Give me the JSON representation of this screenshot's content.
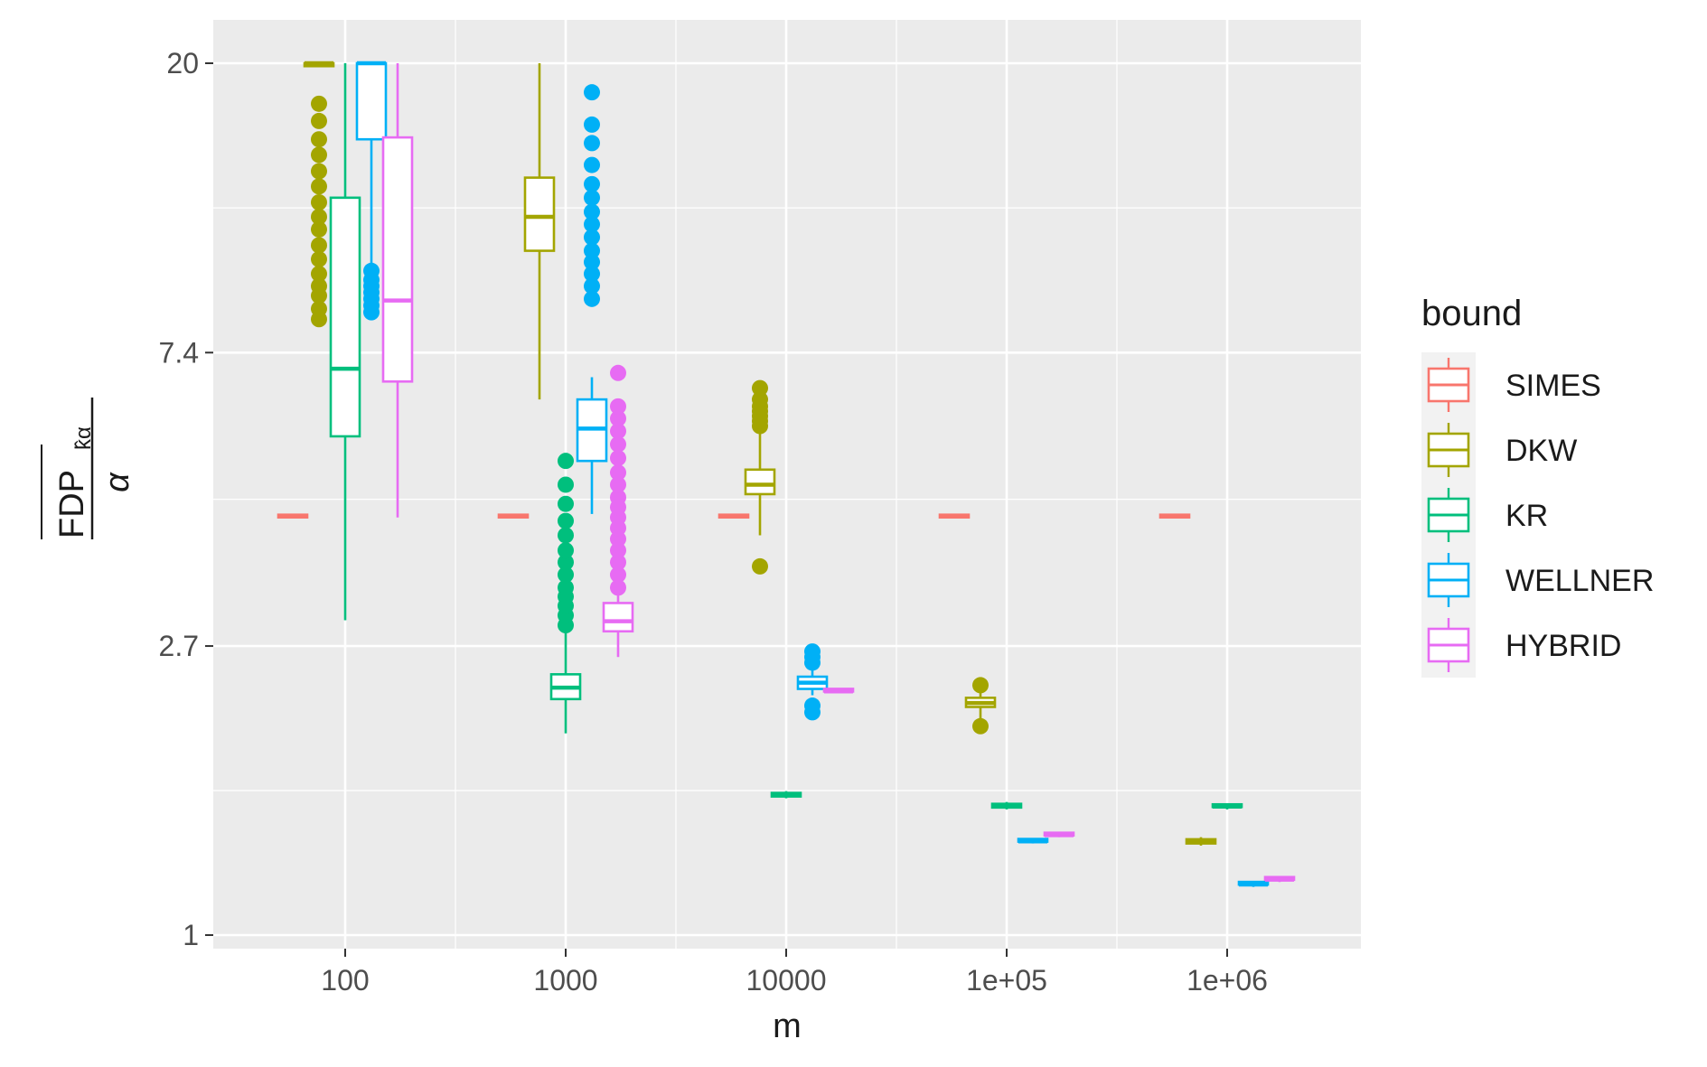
{
  "chart_data": {
    "type": "boxplot",
    "x_axis": {
      "label": "m",
      "scale": "log10",
      "ticks": [
        100,
        1000,
        10000,
        100000,
        1000000
      ],
      "tick_labels": [
        "100",
        "1000",
        "10000",
        "1e+05",
        "1e+06"
      ]
    },
    "y_axis": {
      "label_numerator": "FDP",
      "label_subscript": "k̂α",
      "label_denominator": "α",
      "scale": "log",
      "ticks": [
        1,
        2.7,
        7.4,
        20
      ],
      "tick_labels": [
        "1",
        "2.7",
        "7.4",
        "20"
      ],
      "ylim": [
        1,
        20
      ]
    },
    "grid": true,
    "legend": {
      "title": "bound",
      "position": "right",
      "entries": [
        {
          "name": "SIMES",
          "color": "#F8766D"
        },
        {
          "name": "DKW",
          "color": "#A3A500"
        },
        {
          "name": "KR",
          "color": "#00BF7D"
        },
        {
          "name": "WELLNER",
          "color": "#00B0F6"
        },
        {
          "name": "HYBRID",
          "color": "#E76BF3"
        }
      ]
    },
    "series": [
      {
        "name": "SIMES",
        "color": "#F8766D",
        "boxes": [
          {
            "m": 100,
            "lower": 4.22,
            "q1": 4.22,
            "median": 4.22,
            "q3": 4.22,
            "upper": 4.22,
            "outliers": []
          },
          {
            "m": 1000,
            "lower": 4.22,
            "q1": 4.22,
            "median": 4.22,
            "q3": 4.22,
            "upper": 4.22,
            "outliers": []
          },
          {
            "m": 10000,
            "lower": 4.22,
            "q1": 4.22,
            "median": 4.22,
            "q3": 4.22,
            "upper": 4.22,
            "outliers": []
          },
          {
            "m": 100000,
            "lower": 4.22,
            "q1": 4.22,
            "median": 4.22,
            "q3": 4.22,
            "upper": 4.22,
            "outliers": []
          },
          {
            "m": 1000000,
            "lower": 4.22,
            "q1": 4.22,
            "median": 4.22,
            "q3": 4.22,
            "upper": 4.22,
            "outliers": []
          }
        ]
      },
      {
        "name": "DKW",
        "color": "#A3A500",
        "boxes": [
          {
            "m": 100,
            "lower": 20,
            "q1": 19.8,
            "median": 20,
            "q3": 20,
            "upper": 20,
            "outliers": [
              8.3,
              8.6,
              9.0,
              9.3,
              9.7,
              10.2,
              10.7,
              11.3,
              11.8,
              12.4,
              13.1,
              13.8,
              14.6,
              15.4,
              16.4,
              17.4
            ]
          },
          {
            "m": 1000,
            "lower": 6.3,
            "q1": 10.5,
            "median": 11.8,
            "q3": 13.5,
            "upper": 20,
            "outliers": []
          },
          {
            "m": 10000,
            "lower": 3.95,
            "q1": 4.55,
            "median": 4.7,
            "q3": 4.95,
            "upper": 5.65,
            "outliers": [
              3.55,
              5.75,
              5.85,
              5.95,
              6.05,
              6.15,
              6.3,
              6.55
            ]
          },
          {
            "m": 100000,
            "lower": 2.1,
            "q1": 2.19,
            "median": 2.22,
            "q3": 2.26,
            "upper": 2.32,
            "outliers": [
              2.05,
              2.36
            ]
          },
          {
            "m": 1000000,
            "lower": 1.36,
            "q1": 1.37,
            "median": 1.38,
            "q3": 1.39,
            "upper": 1.4,
            "outliers": []
          }
        ]
      },
      {
        "name": "KR",
        "color": "#00BF7D",
        "boxes": [
          {
            "m": 100,
            "lower": 2.95,
            "q1": 5.55,
            "median": 7.0,
            "q3": 12.6,
            "upper": 20,
            "outliers": []
          },
          {
            "m": 1000,
            "lower": 2.0,
            "q1": 2.25,
            "median": 2.34,
            "q3": 2.45,
            "upper": 2.85,
            "outliers": [
              2.9,
              3.0,
              3.1,
              3.2,
              3.3,
              3.45,
              3.6,
              3.75,
              3.95,
              4.15,
              4.4,
              4.7,
              5.1
            ]
          },
          {
            "m": 10000,
            "lower": 1.6,
            "q1": 1.61,
            "median": 1.62,
            "q3": 1.63,
            "upper": 1.64,
            "outliers": []
          },
          {
            "m": 100000,
            "lower": 1.54,
            "q1": 1.55,
            "median": 1.56,
            "q3": 1.57,
            "upper": 1.58,
            "outliers": []
          },
          {
            "m": 1000000,
            "lower": 1.54,
            "q1": 1.55,
            "median": 1.555,
            "q3": 1.56,
            "upper": 1.57,
            "outliers": []
          }
        ]
      },
      {
        "name": "WELLNER",
        "color": "#00B0F6",
        "boxes": [
          {
            "m": 100,
            "lower": 10.0,
            "q1": 15.4,
            "median": 20,
            "q3": 20,
            "upper": 20,
            "outliers": [
              8.5,
              8.7,
              8.9,
              9.1,
              9.3,
              9.5,
              9.8
            ]
          },
          {
            "m": 1000,
            "lower": 4.25,
            "q1": 5.1,
            "median": 5.7,
            "q3": 6.3,
            "upper": 6.8,
            "outliers": [
              8.9,
              9.3,
              9.7,
              10.1,
              10.5,
              11.0,
              11.5,
              12.0,
              12.6,
              13.2,
              14.1,
              15.2,
              16.2,
              18.1
            ]
          },
          {
            "m": 10000,
            "lower": 2.28,
            "q1": 2.33,
            "median": 2.38,
            "q3": 2.43,
            "upper": 2.5,
            "outliers": [
              2.15,
              2.2,
              2.55,
              2.6,
              2.65
            ]
          },
          {
            "m": 100000,
            "lower": 1.37,
            "q1": 1.375,
            "median": 1.38,
            "q3": 1.385,
            "upper": 1.39,
            "outliers": []
          },
          {
            "m": 1000000,
            "lower": 1.18,
            "q1": 1.185,
            "median": 1.19,
            "q3": 1.195,
            "upper": 1.2,
            "outliers": []
          }
        ]
      },
      {
        "name": "HYBRID",
        "color": "#E76BF3",
        "boxes": [
          {
            "m": 100,
            "lower": 4.2,
            "q1": 6.7,
            "median": 8.85,
            "q3": 15.5,
            "upper": 20,
            "outliers": []
          },
          {
            "m": 1000,
            "lower": 2.6,
            "q1": 2.84,
            "median": 2.94,
            "q3": 3.13,
            "upper": 3.3,
            "outliers": [
              3.3,
              3.45,
              3.6,
              3.75,
              3.9,
              4.05,
              4.2,
              4.35,
              4.5,
              4.7,
              4.9,
              5.15,
              5.4,
              5.65,
              5.9,
              6.15,
              6.9
            ]
          },
          {
            "m": 10000,
            "lower": 2.3,
            "q1": 2.3,
            "median": 2.31,
            "q3": 2.32,
            "upper": 2.33,
            "outliers": []
          },
          {
            "m": 100000,
            "lower": 1.4,
            "q1": 1.405,
            "median": 1.41,
            "q3": 1.415,
            "upper": 1.42,
            "outliers": []
          },
          {
            "m": 1000000,
            "lower": 1.2,
            "q1": 1.205,
            "median": 1.21,
            "q3": 1.215,
            "upper": 1.22,
            "outliers": []
          }
        ]
      }
    ]
  }
}
